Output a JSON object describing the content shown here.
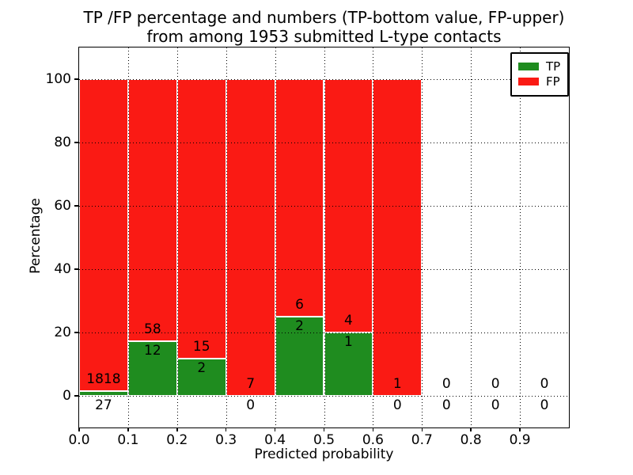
{
  "chart_data": {
    "type": "bar",
    "variant": "stacked-percentage-histogram",
    "title_line1": "TP /FP percentage and numbers (TP-bottom value, FP-upper)",
    "title_line2": "from among 1953 submitted L-type contacts",
    "xlabel": "Predicted probability",
    "ylabel": "Percentage",
    "xlim": [
      0.0,
      1.0
    ],
    "ylim": [
      -10,
      110
    ],
    "x_tick_labels": [
      "0.0",
      "0.1",
      "0.2",
      "0.3",
      "0.4",
      "0.5",
      "0.6",
      "0.7",
      "0.8",
      "0.9"
    ],
    "x_tick_values": [
      0.0,
      0.1,
      0.2,
      0.3,
      0.4,
      0.5,
      0.6,
      0.7,
      0.8,
      0.9
    ],
    "y_tick_labels": [
      "0",
      "20",
      "40",
      "60",
      "80",
      "100"
    ],
    "y_tick_values": [
      0,
      20,
      40,
      60,
      80,
      100
    ],
    "grid": {
      "style": "dotted",
      "color": "#000000",
      "drawn_above_bars": true
    },
    "bins": {
      "start": [
        0.0,
        0.1,
        0.2,
        0.3,
        0.4,
        0.5,
        0.6,
        0.7,
        0.8,
        0.9
      ],
      "width": 0.1
    },
    "series": [
      {
        "name": "TP",
        "color": "#1f8c1f",
        "stack_position": "bottom",
        "counts": [
          27,
          12,
          2,
          0,
          2,
          1,
          0,
          0,
          0,
          0
        ]
      },
      {
        "name": "FP",
        "color": "#fa1a14",
        "stack_position": "top",
        "counts": [
          1818,
          58,
          15,
          7,
          6,
          4,
          1,
          0,
          0,
          0
        ]
      }
    ],
    "bar_edge_color": "#ffffff",
    "legend": {
      "position": "upper-right"
    },
    "axis_color": "#000000"
  }
}
